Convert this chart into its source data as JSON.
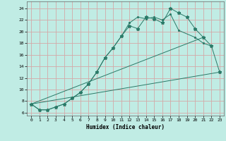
{
  "xlabel": "Humidex (Indice chaleur)",
  "bg_color": "#c0ece4",
  "grid_color": "#d4a8a8",
  "line_color": "#2a7a68",
  "xlim": [
    -0.5,
    23.5
  ],
  "ylim": [
    5.5,
    25.2
  ],
  "xticks": [
    0,
    1,
    2,
    3,
    4,
    5,
    6,
    7,
    8,
    9,
    10,
    11,
    12,
    13,
    14,
    15,
    16,
    17,
    18,
    19,
    20,
    21,
    22,
    23
  ],
  "yticks": [
    6,
    8,
    10,
    12,
    14,
    16,
    18,
    20,
    22,
    24
  ],
  "line1_x": [
    0,
    1,
    2,
    3,
    4,
    5,
    6,
    7,
    8,
    9,
    10,
    11,
    12,
    13,
    14,
    15,
    16,
    17,
    18,
    19,
    20,
    21,
    22,
    23
  ],
  "line1_y": [
    7.5,
    6.5,
    6.5,
    7.0,
    7.5,
    8.5,
    9.5,
    11.0,
    13.0,
    15.5,
    17.2,
    19.2,
    21.0,
    20.5,
    22.5,
    22.2,
    21.5,
    24.0,
    23.2,
    22.5,
    20.5,
    19.0,
    17.5,
    13.0
  ],
  "line2_x": [
    0,
    1,
    2,
    3,
    4,
    5,
    6,
    7,
    8,
    9,
    10,
    11,
    12,
    13,
    14,
    15,
    16,
    17,
    18,
    20,
    21,
    22
  ],
  "line2_y": [
    7.5,
    6.5,
    6.5,
    7.0,
    7.5,
    8.5,
    9.5,
    11.0,
    13.0,
    15.5,
    17.2,
    19.2,
    21.5,
    22.5,
    22.2,
    22.5,
    22.0,
    23.0,
    20.2,
    19.0,
    18.0,
    17.5
  ],
  "line3_x": [
    0,
    23
  ],
  "line3_y": [
    7.5,
    13.0
  ],
  "line4_x": [
    0,
    21
  ],
  "line4_y": [
    7.5,
    19.0
  ]
}
